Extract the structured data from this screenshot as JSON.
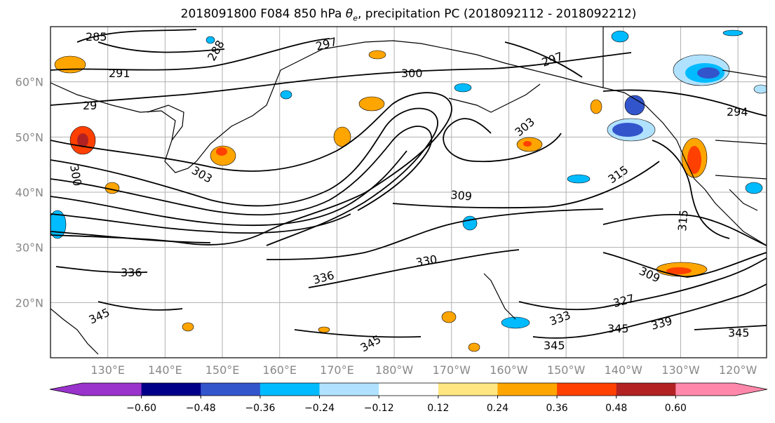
{
  "title": {
    "prefix": "2018091800 F084 850 hPa ",
    "theta": "θ",
    "sub": "e",
    "suffix": ", precipitation PC (2018092112 - 2018092212)"
  },
  "map": {
    "lat_labels": [
      "20°N",
      "30°N",
      "40°N",
      "50°N",
      "60°N"
    ],
    "lon_labels": [
      "130°E",
      "140°E",
      "150°E",
      "160°E",
      "170°E",
      "180°W",
      "170°W",
      "160°W",
      "150°W",
      "140°W",
      "130°W",
      "120°W"
    ],
    "extent": {
      "lon_min": 120,
      "lon_max": 245,
      "lat_min": 10,
      "lat_max": 70
    },
    "contour_labels": [
      "285",
      "288",
      "291",
      "297",
      "300",
      "297",
      "294",
      "303",
      "300",
      "303",
      "309",
      "315",
      "315",
      "330",
      "336",
      "336",
      "345",
      "345",
      "345",
      "327",
      "333",
      "339",
      "309",
      "345",
      "345",
      "29"
    ]
  },
  "colorbar": {
    "colors": [
      "#9933cc",
      "#000088",
      "#3355cc",
      "#00bbff",
      "#b0e2ff",
      "#ffffff",
      "#ffe680",
      "#ffa500",
      "#ff4000",
      "#b22222",
      "#ff88aa"
    ],
    "ticks": [
      "−0.60",
      "−0.48",
      "−0.36",
      "−0.24",
      "−0.12",
      "0.12",
      "0.24",
      "0.36",
      "0.48",
      "0.60"
    ]
  }
}
